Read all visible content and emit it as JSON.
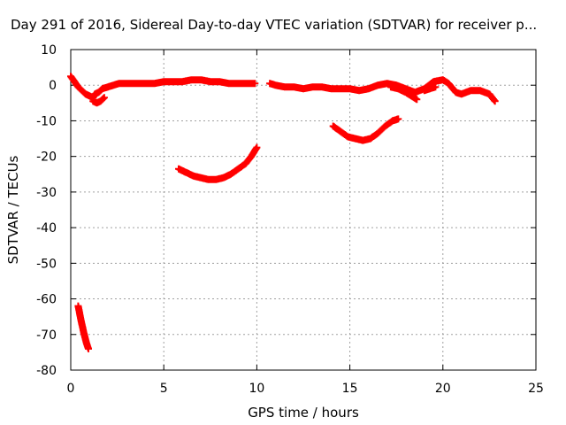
{
  "chart_data": {
    "type": "scatter",
    "title": "Day 291 of 2016, Sidereal Day-to-day VTEC variation (SDTVAR) for receiver p...",
    "xlabel": "GPS time / hours",
    "ylabel": "SDTVAR / TECUs",
    "xlim": [
      0,
      25
    ],
    "ylim": [
      -80,
      10
    ],
    "xticks": [
      0,
      5,
      10,
      15,
      20,
      25
    ],
    "yticks": [
      10,
      0,
      -10,
      -20,
      -30,
      -40,
      -50,
      -60,
      -70,
      -80
    ],
    "grid": true,
    "marker": "+",
    "series": [
      {
        "name": "SDTVAR",
        "color": "#ff0000",
        "segments": [
          [
            [
              0.0,
              2.5
            ],
            [
              0.2,
              1.0
            ],
            [
              0.4,
              -0.5
            ],
            [
              0.6,
              -1.5
            ],
            [
              0.8,
              -2.5
            ],
            [
              1.0,
              -3.0
            ],
            [
              1.2,
              -3.5
            ],
            [
              1.3,
              -2.5
            ],
            [
              1.5,
              -2.0
            ],
            [
              1.7,
              -1.0
            ],
            [
              2.0,
              -0.5
            ],
            [
              2.3,
              0.0
            ],
            [
              2.6,
              0.5
            ],
            [
              3.0,
              0.5
            ],
            [
              3.5,
              0.5
            ],
            [
              4.0,
              0.5
            ],
            [
              4.5,
              0.5
            ],
            [
              5.0,
              1.0
            ],
            [
              5.5,
              1.0
            ],
            [
              6.0,
              1.0
            ],
            [
              6.5,
              1.5
            ],
            [
              7.0,
              1.5
            ],
            [
              7.5,
              1.0
            ],
            [
              8.0,
              1.0
            ],
            [
              8.5,
              0.5
            ],
            [
              9.0,
              0.5
            ],
            [
              9.5,
              0.5
            ],
            [
              9.9,
              0.5
            ]
          ],
          [
            [
              1.2,
              -4.5
            ],
            [
              1.4,
              -5.0
            ],
            [
              1.6,
              -4.5
            ],
            [
              1.8,
              -3.5
            ]
          ],
          [
            [
              10.7,
              0.5
            ],
            [
              11.0,
              0.0
            ],
            [
              11.5,
              -0.5
            ],
            [
              12.0,
              -0.5
            ],
            [
              12.5,
              -1.0
            ],
            [
              13.0,
              -0.5
            ],
            [
              13.5,
              -0.5
            ],
            [
              14.0,
              -1.0
            ],
            [
              14.5,
              -1.0
            ],
            [
              15.0,
              -1.0
            ],
            [
              15.5,
              -1.5
            ],
            [
              16.0,
              -1.0
            ],
            [
              16.5,
              0.0
            ],
            [
              17.0,
              0.5
            ],
            [
              17.5,
              0.0
            ],
            [
              18.0,
              -1.0
            ],
            [
              18.5,
              -2.0
            ],
            [
              19.0,
              -1.0
            ],
            [
              19.5,
              1.0
            ],
            [
              20.0,
              1.5
            ],
            [
              20.3,
              0.5
            ],
            [
              20.7,
              -2.0
            ],
            [
              21.0,
              -2.5
            ],
            [
              21.5,
              -1.5
            ],
            [
              22.0,
              -1.5
            ],
            [
              22.5,
              -2.5
            ],
            [
              22.8,
              -4.5
            ]
          ],
          [
            [
              17.2,
              -0.5
            ],
            [
              17.6,
              -1.0
            ],
            [
              18.0,
              -2.0
            ],
            [
              18.3,
              -3.0
            ],
            [
              18.6,
              -4.0
            ]
          ],
          [
            [
              19.0,
              -1.5
            ],
            [
              19.3,
              -1.0
            ],
            [
              19.6,
              -0.5
            ]
          ],
          [
            [
              5.8,
              -23.5
            ],
            [
              6.2,
              -24.5
            ],
            [
              6.6,
              -25.5
            ],
            [
              7.0,
              -26.0
            ],
            [
              7.4,
              -26.5
            ],
            [
              7.8,
              -26.5
            ],
            [
              8.2,
              -26.0
            ],
            [
              8.6,
              -25.0
            ],
            [
              9.0,
              -23.5
            ],
            [
              9.4,
              -22.0
            ],
            [
              9.7,
              -20.0
            ],
            [
              10.0,
              -17.5
            ]
          ],
          [
            [
              14.1,
              -11.5
            ],
            [
              14.5,
              -13.0
            ],
            [
              14.9,
              -14.5
            ],
            [
              15.3,
              -15.0
            ],
            [
              15.7,
              -15.5
            ],
            [
              16.1,
              -15.0
            ],
            [
              16.5,
              -13.5
            ],
            [
              16.9,
              -11.5
            ],
            [
              17.3,
              -10.0
            ],
            [
              17.6,
              -9.5
            ]
          ],
          [
            [
              0.4,
              -62.0
            ],
            [
              0.55,
              -66.0
            ],
            [
              0.7,
              -69.5
            ],
            [
              0.85,
              -72.5
            ],
            [
              0.95,
              -74.0
            ]
          ]
        ]
      }
    ]
  }
}
